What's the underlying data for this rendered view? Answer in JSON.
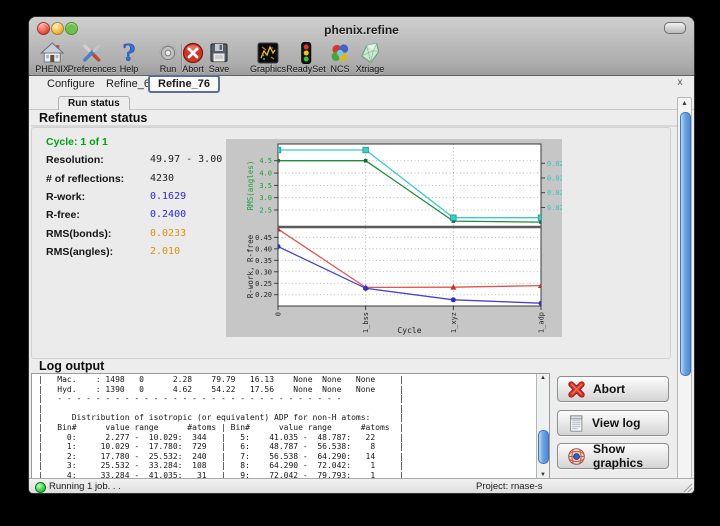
{
  "window": {
    "title": "phenix.refine"
  },
  "toolbar": {
    "items": [
      {
        "label": "PHENIX",
        "icon": "phenix-home-icon"
      },
      {
        "label": "Preferences",
        "icon": "preferences-icon"
      },
      {
        "label": "Help",
        "icon": "help-icon"
      },
      {
        "label": "Run",
        "icon": "run-gear-icon"
      },
      {
        "label": "Abort",
        "icon": "abort-circle-icon"
      },
      {
        "label": "Save",
        "icon": "save-floppy-icon"
      },
      {
        "label": "Graphics",
        "icon": "graphics-icon"
      },
      {
        "label": "ReadySet",
        "icon": "readyset-traffic-icon"
      },
      {
        "label": "NCS",
        "icon": "ncs-spheres-icon"
      },
      {
        "label": "Xtriage",
        "icon": "xtriage-crystal-icon"
      }
    ]
  },
  "tabbar": {
    "tabs": [
      "Configure",
      "Refine_69",
      "Refine_76"
    ],
    "active_index": 2,
    "close_label": "x"
  },
  "subtab_label": "Run status",
  "section_title": "Refinement status",
  "stats": {
    "rows": [
      {
        "label": "Cycle: 1 of 1",
        "value": "",
        "style": "green"
      },
      {
        "label": "Resolution:",
        "value": "49.97 - 3.00",
        "style": "black"
      },
      {
        "label": "# of reflections:",
        "value": "4230",
        "style": "black"
      },
      {
        "label": "R-work:",
        "value": "0.1629",
        "style": "blue"
      },
      {
        "label": "R-free:",
        "value": "0.2400",
        "style": "blue"
      },
      {
        "label": "RMS(bonds):",
        "value": "0.0233",
        "style": "orange"
      },
      {
        "label": "RMS(angles):",
        "value": "2.010",
        "style": "orange"
      }
    ]
  },
  "chart_data": {
    "type": "line",
    "x_categories": [
      "0",
      "1_bss",
      "1_xyz",
      "1_adp"
    ],
    "xlabel": "Cycle",
    "grid": true,
    "background": "#c6c6c6",
    "subplots": [
      {
        "left_axis": {
          "label": "RMS(angles)",
          "color": "#18a13c",
          "ticks": [
            "2.5",
            "3.0",
            "3.5",
            "4.0",
            "4.5"
          ],
          "tick_values": [
            2.5,
            3.0,
            3.5,
            4.0,
            4.5
          ],
          "ylim": [
            1.81,
            5.18
          ]
        },
        "right_axis": {
          "label": "RMS(bonds)",
          "color": "#2fc4c4",
          "ticks": [
            "0.024",
            "0.025",
            "0.026",
            "0.027"
          ],
          "tick_values": [
            0.024,
            0.025,
            0.026,
            0.027
          ],
          "ylim": [
            0.02267,
            0.02831
          ]
        },
        "series": [
          {
            "name": "RMS(angles)",
            "axis": "left",
            "color": "#1d8e3a",
            "marker": "square-small",
            "values": [
              4.5,
              4.5,
              2.05,
              2.01
            ]
          },
          {
            "name": "RMS(bonds)",
            "axis": "right",
            "color": "#3ecaca",
            "marker": "square",
            "values": [
              0.0279,
              0.0279,
              0.0233,
              0.0233
            ]
          }
        ]
      },
      {
        "left_axis": {
          "label": "R-work, R-free",
          "color": "#222222",
          "ticks": [
            "0.20",
            "0.25",
            "0.30",
            "0.35",
            "0.40",
            "0.45"
          ],
          "tick_values": [
            0.2,
            0.25,
            0.3,
            0.35,
            0.4,
            0.45
          ],
          "ylim": [
            0.151,
            0.495
          ]
        },
        "series": [
          {
            "name": "R-free",
            "axis": "left",
            "color": "#e0564c",
            "marker": "triangle",
            "values": [
              0.486,
              0.232,
              0.233,
              0.24
            ]
          },
          {
            "name": "R-work",
            "axis": "left",
            "color": "#4646ce",
            "marker": "circle",
            "values": [
              0.41,
              0.228,
              0.178,
              0.163
            ]
          }
        ]
      }
    ]
  },
  "log": {
    "title": "Log output",
    "lines": [
      "|   Mac.    : 1498   0      2.28    79.79   16.13    None  None   None     |",
      "|   Hyd.    : 1390   0      4.62    54.22   17.56    None  None   None     |",
      "|   - - - - - - - - - - - - - - - - - - - - - - - - - - - - - -            |",
      "|                                                                          |",
      "|      Distribution of isotropic (or equivalent) ADP for non-H atoms:      |",
      "|   Bin#      value range      #atoms | Bin#      value range      #atoms  |",
      "|     0:      2.277 -  10.029:  344   |   5:    41.035 -  48.787:   22     |",
      "|     1:     10.029 -  17.780:  729   |   6:    48.787 -  56.538:    8     |",
      "|     2:     17.780 -  25.532:  240   |   7:    56.538 -  64.290:   14     |",
      "|     3:     25.532 -  33.284:  108   |   8:    64.290 -  72.042:    1     |",
      "|     4:     33.284 -  41.035:   31   |   9:    72.042 -  79.793:    1     |"
    ]
  },
  "action_buttons": [
    {
      "label": "Abort",
      "icon": "abort-x-icon"
    },
    {
      "label": "View log",
      "icon": "view-log-icon"
    },
    {
      "label": "Show graphics",
      "icon": "show-graphics-icon"
    }
  ],
  "statusbar": {
    "status": "Running 1 job. . .",
    "project": "Project: rnase-s"
  },
  "colors": {
    "accent_green": "#00a012",
    "value_blue": "#2a2ad0",
    "value_orange": "#dd8f0e",
    "chart_bg": "#c6c6c6"
  }
}
